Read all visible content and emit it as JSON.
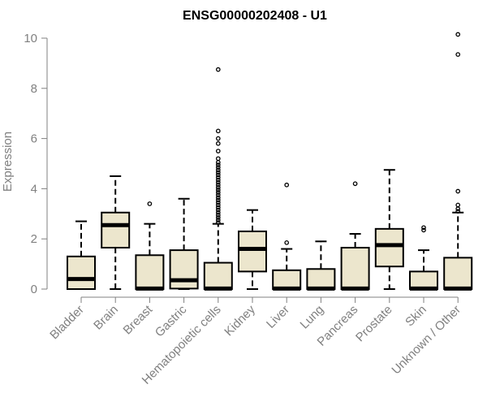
{
  "chart_data": {
    "type": "box",
    "title": "ENSG00000202408 - U1",
    "xlabel": "",
    "ylabel": "Expression",
    "ylim": [
      0,
      10.2
    ],
    "yticks": [
      0,
      2,
      4,
      6,
      8,
      10
    ],
    "grid": false,
    "legend": "none",
    "colors": {
      "box_fill": "#ece6cd",
      "box_stroke": "#000000",
      "axis": "#808080",
      "median": "#000000"
    },
    "categories": [
      "Bladder",
      "Brain",
      "Breast",
      "Gastric",
      "Hematopoietic cells",
      "Kidney",
      "Liver",
      "Lung",
      "Pancreas",
      "Prostate",
      "Skin",
      "Unknown / Other"
    ],
    "boxes": [
      {
        "category": "Bladder",
        "q1": 0.0,
        "median": 0.4,
        "q3": 1.3,
        "whisker_low": 0.0,
        "whisker_high": 2.7,
        "outliers": []
      },
      {
        "category": "Brain",
        "q1": 1.65,
        "median": 2.55,
        "q3": 3.05,
        "whisker_low": 0.0,
        "whisker_high": 4.5,
        "outliers": []
      },
      {
        "category": "Breast",
        "q1": 0.0,
        "median": 0.02,
        "q3": 1.35,
        "whisker_low": 0.0,
        "whisker_high": 2.6,
        "outliers": [
          3.4
        ]
      },
      {
        "category": "Gastric",
        "q1": 0.02,
        "median": 0.35,
        "q3": 1.55,
        "whisker_low": 0.0,
        "whisker_high": 3.6,
        "outliers": []
      },
      {
        "category": "Hematopoietic cells",
        "q1": 0.0,
        "median": 0.02,
        "q3": 1.05,
        "whisker_low": 0.0,
        "whisker_high": 2.6,
        "outliers": [
          2.65,
          2.75,
          2.85,
          2.95,
          3.05,
          3.15,
          3.25,
          3.35,
          3.45,
          3.55,
          3.65,
          3.75,
          3.85,
          3.95,
          4.05,
          4.15,
          4.25,
          4.35,
          4.45,
          4.55,
          4.65,
          4.75,
          4.85,
          4.95,
          5.05,
          5.2,
          5.5,
          5.8,
          6.0,
          6.3,
          8.75
        ]
      },
      {
        "category": "Kidney",
        "q1": 0.7,
        "median": 1.6,
        "q3": 2.3,
        "whisker_low": 0.0,
        "whisker_high": 3.15,
        "outliers": []
      },
      {
        "category": "Liver",
        "q1": 0.0,
        "median": 0.02,
        "q3": 0.75,
        "whisker_low": 0.0,
        "whisker_high": 1.6,
        "outliers": [
          1.85,
          4.15
        ]
      },
      {
        "category": "Lung",
        "q1": 0.0,
        "median": 0.02,
        "q3": 0.8,
        "whisker_low": 0.0,
        "whisker_high": 1.9,
        "outliers": []
      },
      {
        "category": "Pancreas",
        "q1": 0.0,
        "median": 0.02,
        "q3": 1.65,
        "whisker_low": 0.0,
        "whisker_high": 2.2,
        "outliers": [
          4.2
        ]
      },
      {
        "category": "Prostate",
        "q1": 0.9,
        "median": 1.75,
        "q3": 2.4,
        "whisker_low": 0.0,
        "whisker_high": 4.75,
        "outliers": []
      },
      {
        "category": "Skin",
        "q1": 0.0,
        "median": 0.02,
        "q3": 0.7,
        "whisker_low": 0.0,
        "whisker_high": 1.55,
        "outliers": [
          2.35,
          2.45
        ]
      },
      {
        "category": "Unknown / Other",
        "q1": 0.0,
        "median": 0.02,
        "q3": 1.25,
        "whisker_low": 0.0,
        "whisker_high": 3.05,
        "outliers": [
          3.1,
          3.2,
          3.35,
          3.9,
          9.35,
          10.15
        ]
      }
    ]
  }
}
